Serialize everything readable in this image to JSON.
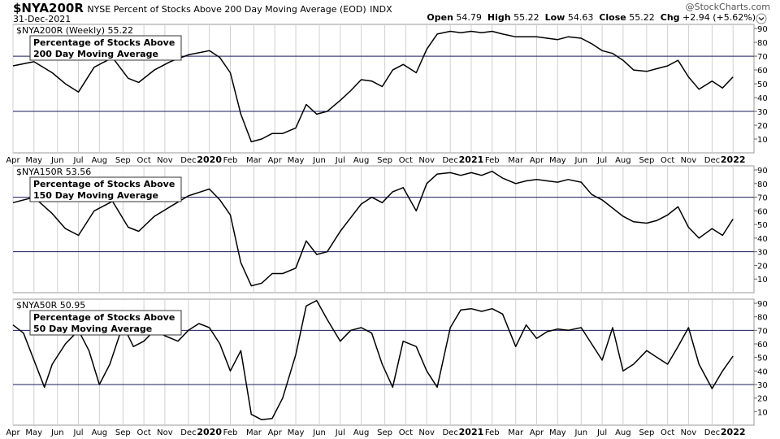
{
  "header": {
    "symbol": "$NYA200R",
    "description": "NYSE Percent of Stocks Above 200 Day Moving Average (EOD)",
    "exchange": "INDX",
    "date": "31-Dec-2021",
    "watermark": "@StockCharts.com",
    "ohlc": {
      "open_label": "Open",
      "open": "54.79",
      "high_label": "High",
      "high": "55.22",
      "low_label": "Low",
      "low": "54.63",
      "close_label": "Close",
      "close": "55.22",
      "chg_label": "Chg",
      "chg": "+2.94 (+5.62%)"
    },
    "colors": {
      "line": "#000000",
      "refline": "#1a1a5e",
      "grid": "#d0d0d0",
      "text": "#000000"
    },
    "icon": "chevron-down-icon"
  },
  "chart_data": [
    {
      "type": "line",
      "series_label": "$NYA200R (Weekly) 55.22",
      "annotation": [
        "Percentage of Stocks Above",
        "200 Day Moving Average"
      ],
      "ylim": [
        0,
        93
      ],
      "yticks": [
        10,
        20,
        30,
        40,
        50,
        60,
        70,
        80,
        90
      ],
      "reference_lines": [
        70,
        30
      ],
      "x": [
        2019.25,
        2019.33,
        2019.4,
        2019.45,
        2019.5,
        2019.56,
        2019.63,
        2019.69,
        2019.73,
        2019.79,
        2019.85,
        2019.92,
        2020.0,
        2020.04,
        2020.08,
        2020.12,
        2020.16,
        2020.2,
        2020.24,
        2020.28,
        2020.33,
        2020.37,
        2020.41,
        2020.45,
        2020.5,
        2020.54,
        2020.58,
        2020.62,
        2020.66,
        2020.7,
        2020.74,
        2020.79,
        2020.83,
        2020.87,
        2020.92,
        2020.96,
        2021.0,
        2021.04,
        2021.08,
        2021.12,
        2021.17,
        2021.21,
        2021.25,
        2021.29,
        2021.33,
        2021.37,
        2021.42,
        2021.46,
        2021.5,
        2021.54,
        2021.58,
        2021.62,
        2021.67,
        2021.71,
        2021.75,
        2021.79,
        2021.83,
        2021.87,
        2021.92,
        2021.96,
        2022.0
      ],
      "values": [
        63,
        66,
        58,
        50,
        44,
        62,
        69,
        54,
        51,
        60,
        66,
        71,
        74,
        69,
        58,
        28,
        8,
        10,
        14,
        14,
        18,
        35,
        28,
        30,
        38,
        45,
        53,
        52,
        48,
        60,
        64,
        58,
        75,
        86,
        88,
        87,
        88,
        87,
        88,
        86,
        84,
        84,
        84,
        83,
        82,
        84,
        83,
        79,
        74,
        72,
        67,
        60,
        59,
        61,
        63,
        67,
        55,
        46,
        52,
        47,
        55
      ],
      "xticks": [
        {
          "label": "Apr",
          "x": 2019.25
        },
        {
          "label": "May",
          "x": 2019.33
        },
        {
          "label": "Jun",
          "x": 2019.42
        },
        {
          "label": "Jul",
          "x": 2019.5
        },
        {
          "label": "Aug",
          "x": 2019.58
        },
        {
          "label": "Sep",
          "x": 2019.67
        },
        {
          "label": "Oct",
          "x": 2019.75
        },
        {
          "label": "Nov",
          "x": 2019.83
        },
        {
          "label": "Dec",
          "x": 2019.92
        },
        {
          "label": "2020",
          "x": 2020.0,
          "bold": true
        },
        {
          "label": "Feb",
          "x": 2020.08
        },
        {
          "label": "Mar",
          "x": 2020.17
        },
        {
          "label": "Apr",
          "x": 2020.25
        },
        {
          "label": "May",
          "x": 2020.33
        },
        {
          "label": "Jun",
          "x": 2020.42
        },
        {
          "label": "Jul",
          "x": 2020.5
        },
        {
          "label": "Aug",
          "x": 2020.58
        },
        {
          "label": "Sep",
          "x": 2020.67
        },
        {
          "label": "Oct",
          "x": 2020.75
        },
        {
          "label": "Nov",
          "x": 2020.83
        },
        {
          "label": "Dec",
          "x": 2020.92
        },
        {
          "label": "2021",
          "x": 2021.0,
          "bold": true
        },
        {
          "label": "Feb",
          "x": 2021.08
        },
        {
          "label": "Mar",
          "x": 2021.17
        },
        {
          "label": "Apr",
          "x": 2021.25
        },
        {
          "label": "May",
          "x": 2021.33
        },
        {
          "label": "Jun",
          "x": 2021.42
        },
        {
          "label": "Jul",
          "x": 2021.5
        },
        {
          "label": "Aug",
          "x": 2021.58
        },
        {
          "label": "Sep",
          "x": 2021.67
        },
        {
          "label": "Oct",
          "x": 2021.75
        },
        {
          "label": "Nov",
          "x": 2021.83
        },
        {
          "label": "Dec",
          "x": 2021.92
        },
        {
          "label": "2022",
          "x": 2022.0,
          "bold": true
        }
      ]
    },
    {
      "type": "line",
      "series_label": "$NYA150R 53.56",
      "annotation": [
        "Percentage of Stocks Above",
        "150 Day Moving Average"
      ],
      "ylim": [
        0,
        93
      ],
      "yticks": [
        10,
        20,
        30,
        40,
        50,
        60,
        70,
        80,
        90
      ],
      "reference_lines": [
        70,
        30
      ],
      "x": [
        2019.25,
        2019.33,
        2019.4,
        2019.45,
        2019.5,
        2019.56,
        2019.63,
        2019.69,
        2019.73,
        2019.79,
        2019.85,
        2019.92,
        2020.0,
        2020.04,
        2020.08,
        2020.12,
        2020.16,
        2020.2,
        2020.24,
        2020.28,
        2020.33,
        2020.37,
        2020.41,
        2020.45,
        2020.5,
        2020.54,
        2020.58,
        2020.62,
        2020.66,
        2020.7,
        2020.74,
        2020.79,
        2020.83,
        2020.87,
        2020.92,
        2020.96,
        2021.0,
        2021.04,
        2021.08,
        2021.12,
        2021.17,
        2021.21,
        2021.25,
        2021.29,
        2021.33,
        2021.37,
        2021.42,
        2021.46,
        2021.5,
        2021.54,
        2021.58,
        2021.62,
        2021.67,
        2021.71,
        2021.75,
        2021.79,
        2021.83,
        2021.87,
        2021.92,
        2021.96,
        2022.0
      ],
      "values": [
        66,
        70,
        58,
        47,
        42,
        60,
        67,
        48,
        45,
        56,
        63,
        71,
        76,
        68,
        57,
        22,
        5,
        7,
        14,
        14,
        18,
        38,
        28,
        30,
        45,
        55,
        65,
        70,
        66,
        74,
        77,
        60,
        80,
        87,
        88,
        86,
        88,
        86,
        89,
        84,
        80,
        82,
        83,
        82,
        81,
        83,
        81,
        72,
        68,
        62,
        56,
        52,
        51,
        53,
        57,
        63,
        48,
        40,
        47,
        42,
        54
      ],
      "xticks": []
    },
    {
      "type": "line",
      "series_label": "$NYA50R 50.95",
      "annotation": [
        "Percentage of Stocks Above",
        "50 Day Moving Average"
      ],
      "ylim": [
        0,
        93
      ],
      "yticks": [
        10,
        20,
        30,
        40,
        50,
        60,
        70,
        80,
        90
      ],
      "reference_lines": [
        70,
        30
      ],
      "x": [
        2019.25,
        2019.29,
        2019.33,
        2019.37,
        2019.4,
        2019.45,
        2019.5,
        2019.54,
        2019.58,
        2019.62,
        2019.67,
        2019.71,
        2019.75,
        2019.79,
        2019.83,
        2019.88,
        2019.92,
        2019.96,
        2020.0,
        2020.04,
        2020.08,
        2020.12,
        2020.16,
        2020.2,
        2020.24,
        2020.28,
        2020.33,
        2020.37,
        2020.41,
        2020.45,
        2020.5,
        2020.54,
        2020.58,
        2020.62,
        2020.66,
        2020.7,
        2020.74,
        2020.79,
        2020.83,
        2020.87,
        2020.92,
        2020.96,
        2021.0,
        2021.04,
        2021.08,
        2021.12,
        2021.17,
        2021.21,
        2021.25,
        2021.29,
        2021.33,
        2021.37,
        2021.42,
        2021.46,
        2021.5,
        2021.54,
        2021.58,
        2021.62,
        2021.67,
        2021.71,
        2021.75,
        2021.79,
        2021.83,
        2021.87,
        2021.92,
        2021.96,
        2022.0
      ],
      "values": [
        74,
        68,
        48,
        28,
        45,
        60,
        70,
        55,
        30,
        45,
        74,
        58,
        62,
        70,
        66,
        62,
        70,
        75,
        72,
        60,
        40,
        55,
        8,
        4,
        5,
        20,
        52,
        88,
        92,
        78,
        62,
        70,
        72,
        68,
        45,
        28,
        62,
        58,
        40,
        28,
        72,
        85,
        86,
        84,
        86,
        82,
        58,
        74,
        64,
        69,
        71,
        70,
        72,
        60,
        48,
        72,
        40,
        45,
        55,
        50,
        45,
        58,
        72,
        45,
        27,
        40,
        51
      ],
      "xticks": [
        {
          "label": "Apr",
          "x": 2019.25
        },
        {
          "label": "May",
          "x": 2019.33
        },
        {
          "label": "Jun",
          "x": 2019.42
        },
        {
          "label": "Jul",
          "x": 2019.5
        },
        {
          "label": "Aug",
          "x": 2019.58
        },
        {
          "label": "Sep",
          "x": 2019.67
        },
        {
          "label": "Oct",
          "x": 2019.75
        },
        {
          "label": "Nov",
          "x": 2019.83
        },
        {
          "label": "Dec",
          "x": 2019.92
        },
        {
          "label": "2020",
          "x": 2020.0,
          "bold": true
        },
        {
          "label": "Feb",
          "x": 2020.08
        },
        {
          "label": "Mar",
          "x": 2020.17
        },
        {
          "label": "Apr",
          "x": 2020.25
        },
        {
          "label": "May",
          "x": 2020.33
        },
        {
          "label": "Jun",
          "x": 2020.42
        },
        {
          "label": "Jul",
          "x": 2020.5
        },
        {
          "label": "Aug",
          "x": 2020.58
        },
        {
          "label": "Sep",
          "x": 2020.67
        },
        {
          "label": "Oct",
          "x": 2020.75
        },
        {
          "label": "Nov",
          "x": 2020.83
        },
        {
          "label": "Dec",
          "x": 2020.92
        },
        {
          "label": "2021",
          "x": 2021.0,
          "bold": true
        },
        {
          "label": "Feb",
          "x": 2021.08
        },
        {
          "label": "Mar",
          "x": 2021.17
        },
        {
          "label": "Apr",
          "x": 2021.25
        },
        {
          "label": "May",
          "x": 2021.33
        },
        {
          "label": "Jun",
          "x": 2021.42
        },
        {
          "label": "Jul",
          "x": 2021.5
        },
        {
          "label": "Aug",
          "x": 2021.58
        },
        {
          "label": "Sep",
          "x": 2021.67
        },
        {
          "label": "Oct",
          "x": 2021.75
        },
        {
          "label": "Nov",
          "x": 2021.83
        },
        {
          "label": "Dec",
          "x": 2021.92
        },
        {
          "label": "2022",
          "x": 2022.0,
          "bold": true
        }
      ]
    }
  ]
}
